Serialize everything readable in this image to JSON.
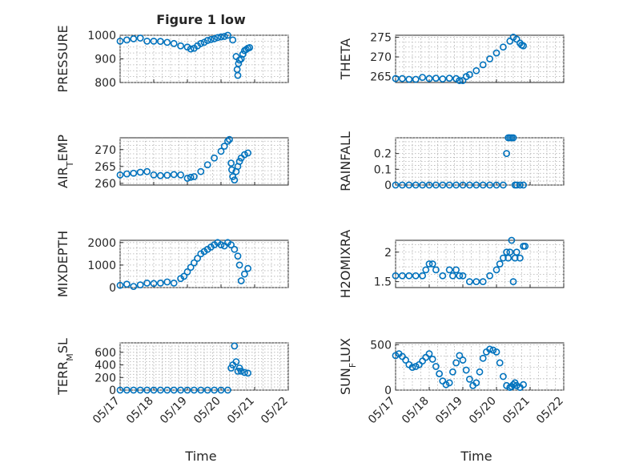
{
  "figure": {
    "title": "Figure 1 low",
    "marker_color": "#0072BD",
    "x_ticks": [
      "05/17",
      "05/18",
      "05/19",
      "05/20",
      "05/21",
      "05/22"
    ],
    "xlabel": "Time"
  },
  "chart_data": [
    {
      "type": "scatter",
      "ylabel": "PRESSURE",
      "ylim": [
        800,
        1000
      ],
      "yticks": [
        800,
        900,
        1000
      ],
      "ytick_labels": [
        "800",
        "900",
        "1000"
      ],
      "grid": true,
      "x": [
        0,
        0.2,
        0.4,
        0.6,
        0.8,
        1.0,
        1.2,
        1.4,
        1.6,
        1.8,
        2.0,
        2.1,
        2.2,
        2.3,
        2.4,
        2.5,
        2.6,
        2.7,
        2.8,
        2.9,
        3.0,
        3.1,
        3.2,
        3.35,
        3.45,
        3.48,
        3.5,
        3.52,
        3.55,
        3.6,
        3.65,
        3.7,
        3.75,
        3.8,
        3.85
      ],
      "y": [
        975,
        980,
        985,
        988,
        975,
        975,
        974,
        970,
        965,
        955,
        950,
        942,
        945,
        955,
        965,
        970,
        978,
        982,
        985,
        990,
        993,
        995,
        1000,
        980,
        910,
        855,
        830,
        880,
        895,
        900,
        920,
        935,
        940,
        945,
        948
      ]
    },
    {
      "type": "scatter",
      "ylabel": "THETA",
      "ylim": [
        263.5,
        275.5
      ],
      "yticks": [
        265,
        270,
        275
      ],
      "ytick_labels": [
        "265",
        "270",
        "275"
      ],
      "grid": true,
      "x": [
        0,
        0.2,
        0.4,
        0.6,
        0.8,
        1.0,
        1.2,
        1.4,
        1.6,
        1.8,
        1.9,
        2.0,
        2.1,
        2.2,
        2.4,
        2.6,
        2.8,
        3.0,
        3.2,
        3.4,
        3.5,
        3.6,
        3.7,
        3.75,
        3.8
      ],
      "y": [
        264.5,
        264.5,
        264.3,
        264.3,
        264.8,
        264.5,
        264.6,
        264.4,
        264.6,
        264.5,
        264.0,
        264.0,
        265.0,
        265.5,
        266.5,
        268.0,
        269.5,
        271.0,
        272.5,
        274.0,
        275.0,
        274.5,
        273.5,
        273.0,
        272.8
      ]
    },
    {
      "type": "scatter",
      "ylabel": "AIR_TEMP",
      "ylim": [
        259.5,
        273.5
      ],
      "yticks": [
        260,
        265,
        270
      ],
      "ytick_labels": [
        "260",
        "265",
        "270"
      ],
      "grid": true,
      "x": [
        0,
        0.2,
        0.4,
        0.6,
        0.8,
        1.0,
        1.2,
        1.4,
        1.6,
        1.8,
        2.0,
        2.1,
        2.2,
        2.4,
        2.6,
        2.8,
        3.0,
        3.1,
        3.2,
        3.25,
        3.3,
        3.32,
        3.35,
        3.4,
        3.45,
        3.5,
        3.55,
        3.6,
        3.7,
        3.8
      ],
      "y": [
        262.5,
        262.8,
        263.0,
        263.3,
        263.5,
        262.5,
        262.3,
        262.4,
        262.6,
        262.5,
        261.5,
        261.8,
        262.0,
        263.5,
        265.5,
        267.5,
        269.5,
        271.0,
        272.5,
        273.0,
        266.0,
        264.0,
        262.0,
        261.0,
        263.5,
        265.0,
        266.5,
        267.5,
        268.5,
        269.0
      ]
    },
    {
      "type": "scatter",
      "ylabel": "RAINFALL",
      "ylim": [
        0,
        0.3
      ],
      "yticks": [
        0,
        0.1,
        0.2
      ],
      "ytick_labels": [
        "0",
        "0.1",
        "0.2"
      ],
      "grid": true,
      "x": [
        0,
        0.2,
        0.4,
        0.6,
        0.8,
        1.0,
        1.2,
        1.4,
        1.6,
        1.8,
        2.0,
        2.2,
        2.4,
        2.6,
        2.8,
        3.0,
        3.2,
        3.3,
        3.35,
        3.4,
        3.45,
        3.5,
        3.55,
        3.6,
        3.7,
        3.8
      ],
      "y": [
        0,
        0,
        0,
        0,
        0,
        0,
        0,
        0,
        0,
        0,
        0,
        0,
        0,
        0,
        0,
        0,
        0,
        0.2,
        0.3,
        0.3,
        0.3,
        0.3,
        0,
        0,
        0,
        0
      ]
    },
    {
      "type": "scatter",
      "ylabel": "MIXDEPTH",
      "ylim": [
        0,
        2100
      ],
      "yticks": [
        0,
        1000,
        2000
      ],
      "ytick_labels": [
        "0",
        "1000",
        "2000"
      ],
      "grid": true,
      "x": [
        0,
        0.2,
        0.4,
        0.6,
        0.8,
        1.0,
        1.2,
        1.4,
        1.6,
        1.8,
        1.9,
        2.0,
        2.1,
        2.2,
        2.3,
        2.4,
        2.5,
        2.6,
        2.7,
        2.8,
        2.9,
        3.0,
        3.1,
        3.2,
        3.3,
        3.4,
        3.5,
        3.55,
        3.6,
        3.7,
        3.8
      ],
      "y": [
        100,
        150,
        50,
        120,
        200,
        180,
        200,
        250,
        200,
        400,
        500,
        700,
        900,
        1100,
        1300,
        1500,
        1600,
        1700,
        1800,
        1900,
        2000,
        1900,
        1850,
        2000,
        1900,
        1700,
        1400,
        1000,
        300,
        600,
        850
      ]
    },
    {
      "type": "scatter",
      "ylabel": "H2OMIXRA",
      "ylim": [
        1.4,
        2.2
      ],
      "yticks": [
        1.5,
        2
      ],
      "ytick_labels": [
        "1.5",
        "2"
      ],
      "grid": true,
      "x": [
        0,
        0.2,
        0.4,
        0.6,
        0.8,
        0.9,
        1.0,
        1.1,
        1.2,
        1.4,
        1.6,
        1.7,
        1.8,
        1.9,
        2.0,
        2.2,
        2.4,
        2.6,
        2.8,
        3.0,
        3.1,
        3.2,
        3.3,
        3.35,
        3.4,
        3.45,
        3.5,
        3.55,
        3.6,
        3.7,
        3.8,
        3.85
      ],
      "y": [
        1.6,
        1.6,
        1.6,
        1.6,
        1.6,
        1.7,
        1.8,
        1.8,
        1.7,
        1.6,
        1.7,
        1.6,
        1.7,
        1.6,
        1.6,
        1.5,
        1.5,
        1.5,
        1.6,
        1.7,
        1.8,
        1.9,
        2.0,
        1.9,
        2.0,
        2.2,
        1.5,
        1.9,
        2.0,
        1.9,
        2.1,
        2.1
      ]
    },
    {
      "type": "scatter",
      "ylabel": "TERR_MSL",
      "ylim": [
        0,
        750
      ],
      "yticks": [
        0,
        200,
        400,
        600
      ],
      "ytick_labels": [
        "0",
        "200",
        "400",
        "600"
      ],
      "grid": true,
      "x": [
        0,
        0.2,
        0.4,
        0.6,
        0.8,
        1.0,
        1.2,
        1.4,
        1.6,
        1.8,
        2.0,
        2.2,
        2.4,
        2.6,
        2.8,
        3.0,
        3.2,
        3.3,
        3.35,
        3.4,
        3.45,
        3.5,
        3.55,
        3.6,
        3.7,
        3.8
      ],
      "y": [
        0,
        0,
        0,
        0,
        0,
        0,
        0,
        0,
        0,
        0,
        0,
        0,
        0,
        0,
        0,
        0,
        0,
        350,
        400,
        700,
        450,
        300,
        350,
        300,
        280,
        270
      ]
    },
    {
      "type": "scatter",
      "ylabel": "SUN_FLUX",
      "ylim": [
        0,
        520
      ],
      "yticks": [
        0,
        500
      ],
      "ytick_labels": [
        "0",
        "500"
      ],
      "grid": true,
      "x": [
        0,
        0.1,
        0.2,
        0.3,
        0.4,
        0.5,
        0.6,
        0.7,
        0.8,
        0.9,
        1.0,
        1.1,
        1.2,
        1.3,
        1.4,
        1.5,
        1.6,
        1.7,
        1.8,
        1.9,
        2.0,
        2.1,
        2.2,
        2.3,
        2.4,
        2.5,
        2.6,
        2.7,
        2.8,
        2.9,
        3.0,
        3.1,
        3.2,
        3.3,
        3.4,
        3.45,
        3.5,
        3.55,
        3.6,
        3.7,
        3.8
      ],
      "y": [
        380,
        400,
        370,
        330,
        280,
        250,
        260,
        280,
        320,
        360,
        400,
        340,
        260,
        180,
        100,
        60,
        80,
        200,
        300,
        380,
        330,
        220,
        120,
        50,
        80,
        200,
        350,
        420,
        450,
        440,
        420,
        300,
        150,
        50,
        30,
        40,
        60,
        80,
        50,
        30,
        60
      ]
    }
  ]
}
